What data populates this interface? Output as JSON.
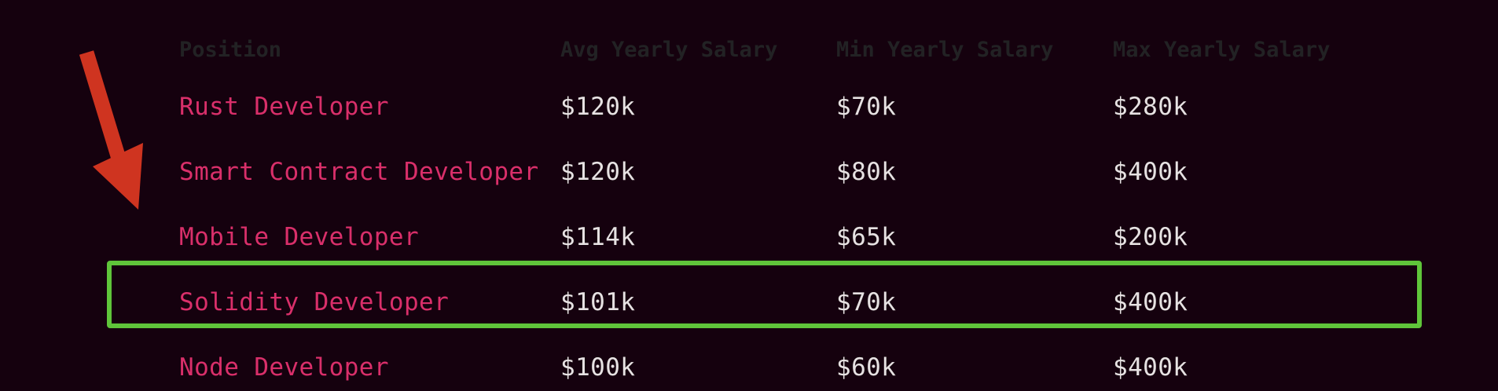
{
  "table": {
    "headers": {
      "position": "Position",
      "avg": "Avg Yearly Salary",
      "min": "Min Yearly Salary",
      "max": "Max Yearly Salary"
    },
    "rows": [
      {
        "position": "Rust Developer",
        "avg": "$120k",
        "min": "$70k",
        "max": "$280k"
      },
      {
        "position": "Smart Contract Developer",
        "avg": "$120k",
        "min": "$80k",
        "max": "$400k"
      },
      {
        "position": "Mobile Developer",
        "avg": "$114k",
        "min": "$65k",
        "max": "$200k"
      },
      {
        "position": "Solidity Developer",
        "avg": "$101k",
        "min": "$70k",
        "max": "$400k"
      },
      {
        "position": "Node Developer",
        "avg": "$100k",
        "min": "$60k",
        "max": "$400k"
      }
    ]
  },
  "annotations": {
    "highlighted_row": "Solidity Developer",
    "highlight_color": "#5fc53a",
    "arrow_color": "#cf3420",
    "arrow_icon": "arrow-down-right-icon"
  },
  "colors": {
    "background": "#15010e",
    "position_text": "#d92f6a",
    "value_text": "#e6e2e2",
    "header_text": "#222224"
  }
}
